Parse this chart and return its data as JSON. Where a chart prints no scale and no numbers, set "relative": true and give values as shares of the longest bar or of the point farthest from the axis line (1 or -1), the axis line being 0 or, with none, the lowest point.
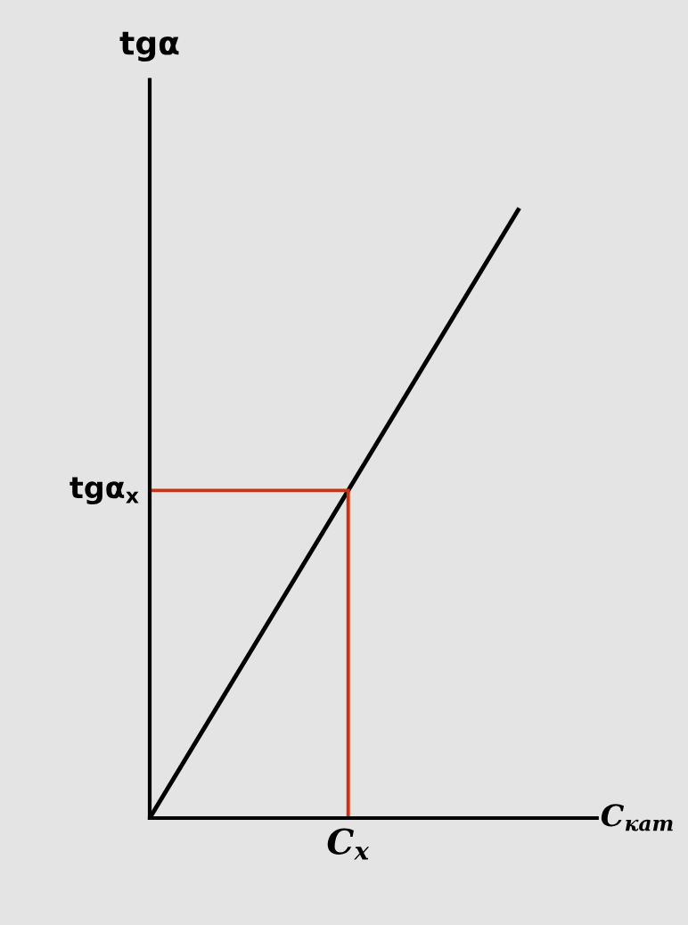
{
  "chart_data": {
    "type": "line",
    "relative": true,
    "xlabel": "C$_{кат}$",
    "ylabel": "tgα",
    "categories": [
      null,
      null
    ],
    "series": [
      {
        "color": "#000000",
        "values": [
          0,
          1
        ]
      }
    ],
    "ref_lines": [
      {
        "axis": "y",
        "value": 0.537,
        "label": "tgα$_{x}$",
        "color": "#d03010"
      }
    ],
    "annotations": [
      "C$_{x}$"
    ]
  }
}
